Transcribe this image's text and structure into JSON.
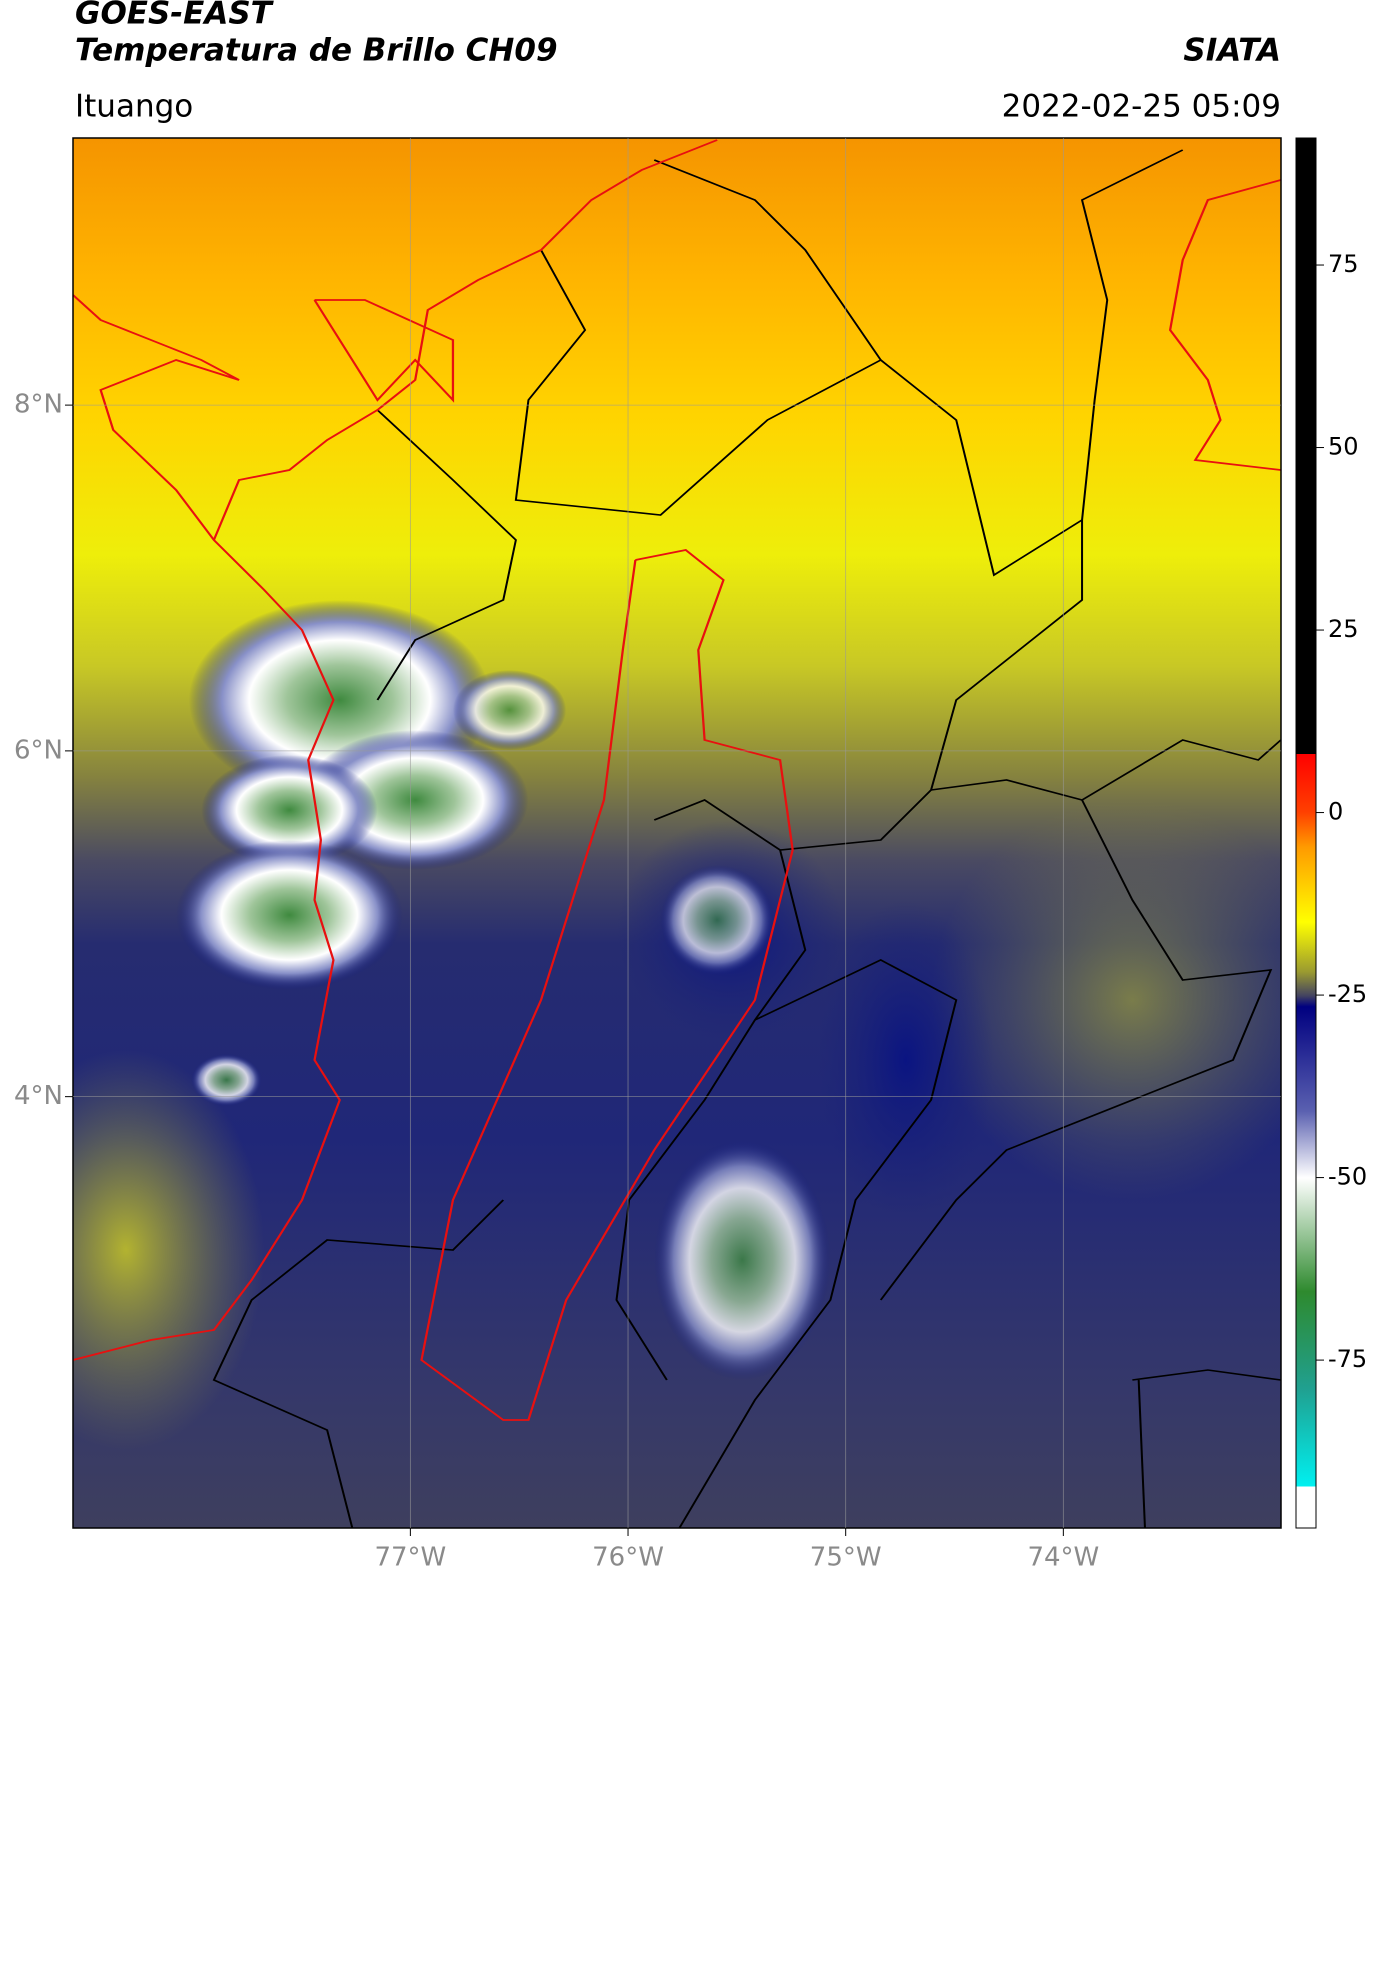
{
  "chart_data": {
    "type": "map",
    "title": "GOES-EAST",
    "subtitle": "Temperatura de Brillo CH09",
    "source": "SIATA",
    "region": "Ituango",
    "datetime": "2022-02-25 05:09",
    "xlim": [
      -78.55,
      -73.0
    ],
    "ylim": [
      1.505,
      9.545
    ],
    "xticks": [
      {
        "value": -77,
        "label": "77°W"
      },
      {
        "value": -76,
        "label": "76°W"
      },
      {
        "value": -75,
        "label": "75°W"
      },
      {
        "value": -74,
        "label": "74°W"
      }
    ],
    "yticks": [
      {
        "value": 8,
        "label": "8°N"
      },
      {
        "value": 6,
        "label": "6°N"
      },
      {
        "value": 4,
        "label": "4°N"
      }
    ],
    "grid": true,
    "colorbar": {
      "lim": [
        -98,
        92.4
      ],
      "ticks": [
        75,
        50,
        25,
        0,
        -25,
        -50,
        -75
      ]
    }
  }
}
